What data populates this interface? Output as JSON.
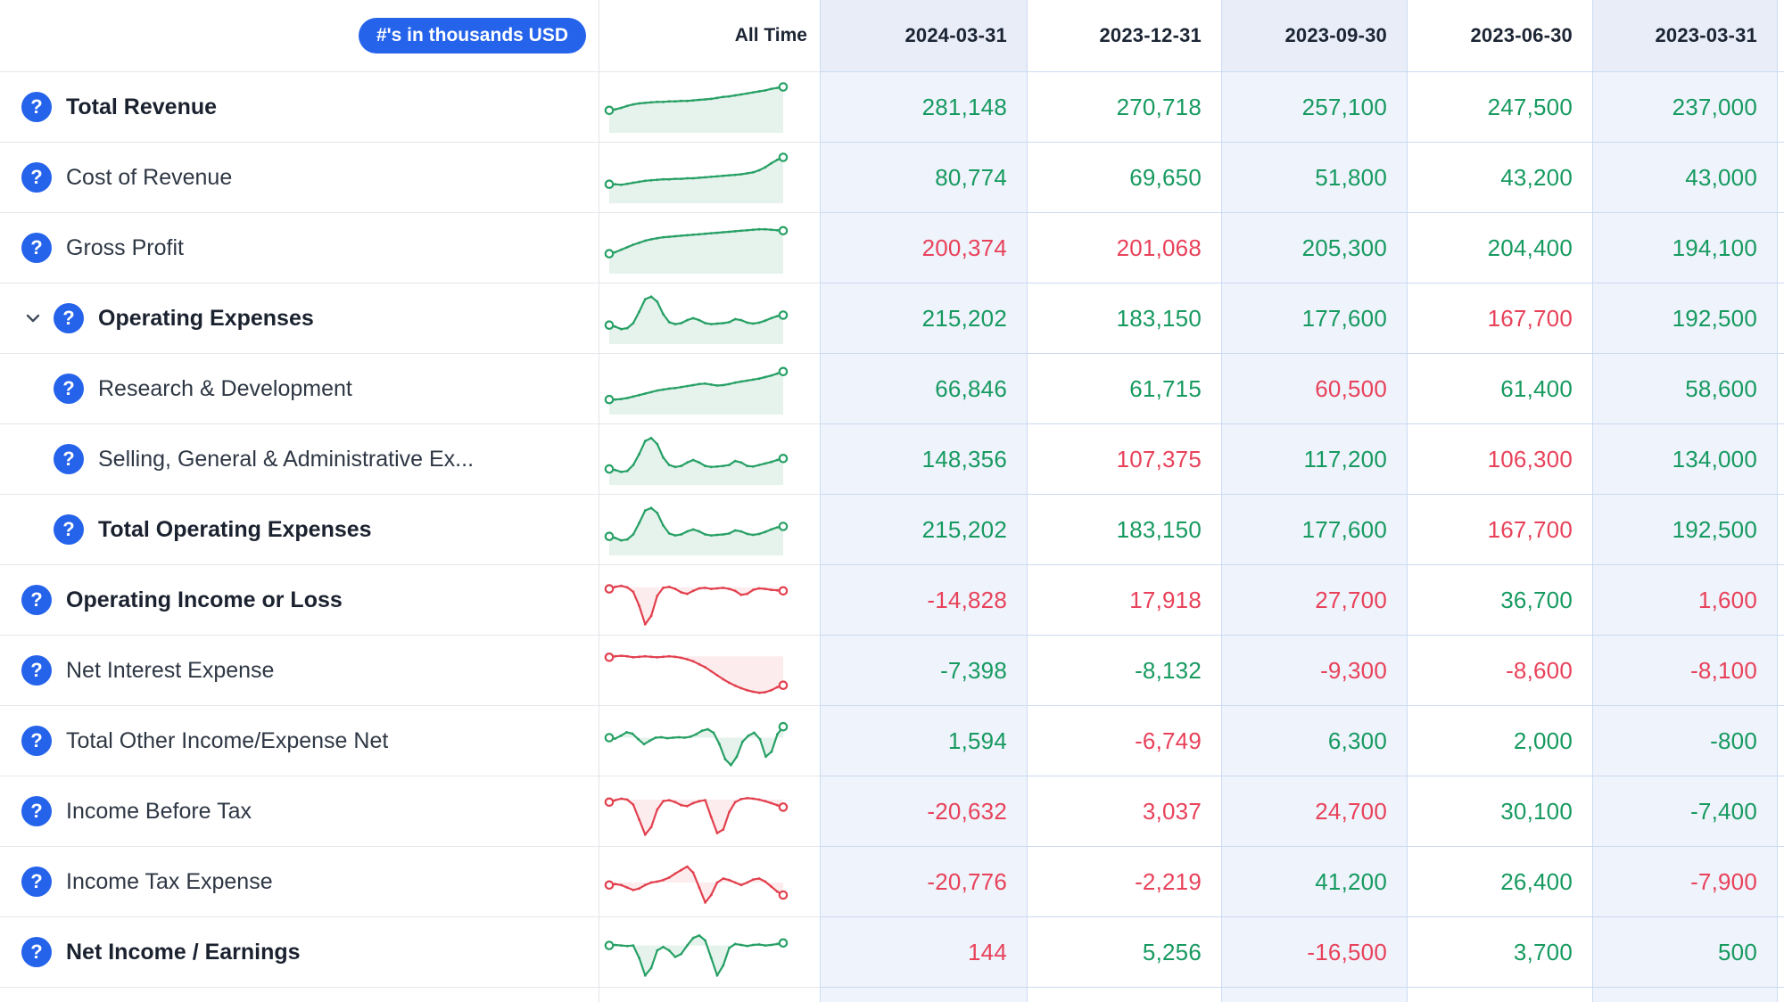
{
  "badge": "#'s in thousands USD",
  "header": {
    "all_time": "All Time",
    "dates": [
      "2024-03-31",
      "2023-12-31",
      "2023-09-30",
      "2023-06-30",
      "2023-03-31"
    ]
  },
  "colors": {
    "accent_blue": "#2563eb",
    "positive_green": "#179a60",
    "negative_red": "#e8425a",
    "spark_green": "#27a065",
    "spark_green_fill": "rgba(39,160,101,0.12)",
    "spark_red": "#e2404e",
    "spark_red_fill": "rgba(226,64,78,0.10)",
    "tint_header": "#e8edf8",
    "tint_body": "#eef3fc"
  },
  "rows": [
    {
      "label": "Total Revenue",
      "bold": true,
      "values": [
        "281,148",
        "270,718",
        "257,100",
        "247,500",
        "237,000"
      ],
      "value_colors": [
        "green",
        "green",
        "green",
        "green",
        "green"
      ],
      "spark": {
        "color": "green",
        "baseline": 1,
        "points": [
          0.55,
          0.53,
          0.5,
          0.46,
          0.43,
          0.41,
          0.4,
          0.39,
          0.38,
          0.38,
          0.37,
          0.37,
          0.36,
          0.36,
          0.35,
          0.34,
          0.33,
          0.32,
          0.3,
          0.28,
          0.27,
          0.25,
          0.23,
          0.21,
          0.19,
          0.17,
          0.15,
          0.12,
          0.1,
          0.08
        ]
      }
    },
    {
      "label": "Cost of Revenue",
      "bold": false,
      "values": [
        "80,774",
        "69,650",
        "51,800",
        "43,200",
        "43,000"
      ],
      "value_colors": [
        "green",
        "green",
        "green",
        "green",
        "green"
      ],
      "spark": {
        "color": "green",
        "baseline": 1,
        "points": [
          0.62,
          0.62,
          0.63,
          0.61,
          0.59,
          0.57,
          0.55,
          0.54,
          0.53,
          0.52,
          0.52,
          0.51,
          0.51,
          0.5,
          0.5,
          0.49,
          0.48,
          0.47,
          0.46,
          0.45,
          0.44,
          0.43,
          0.42,
          0.4,
          0.38,
          0.34,
          0.28,
          0.2,
          0.13,
          0.08
        ]
      }
    },
    {
      "label": "Gross Profit",
      "bold": false,
      "values": [
        "200,374",
        "201,068",
        "205,300",
        "204,400",
        "194,100"
      ],
      "value_colors": [
        "red",
        "red",
        "green",
        "green",
        "green"
      ],
      "spark": {
        "color": "green",
        "baseline": 1,
        "points": [
          0.6,
          0.57,
          0.52,
          0.47,
          0.42,
          0.38,
          0.34,
          0.31,
          0.29,
          0.27,
          0.26,
          0.25,
          0.24,
          0.23,
          0.22,
          0.21,
          0.2,
          0.19,
          0.18,
          0.17,
          0.16,
          0.15,
          0.14,
          0.13,
          0.12,
          0.11,
          0.11,
          0.12,
          0.13,
          0.14
        ]
      }
    },
    {
      "label": "Operating Expenses",
      "bold": true,
      "expandable": true,
      "values": [
        "215,202",
        "183,150",
        "177,600",
        "167,700",
        "192,500"
      ],
      "value_colors": [
        "green",
        "green",
        "green",
        "red",
        "green"
      ],
      "spark": {
        "color": "green",
        "baseline": 1,
        "points": [
          0.62,
          0.65,
          0.7,
          0.68,
          0.58,
          0.35,
          0.1,
          0.05,
          0.15,
          0.4,
          0.56,
          0.6,
          0.58,
          0.52,
          0.48,
          0.52,
          0.58,
          0.6,
          0.59,
          0.58,
          0.56,
          0.5,
          0.52,
          0.57,
          0.59,
          0.57,
          0.53,
          0.48,
          0.44,
          0.42
        ]
      }
    },
    {
      "label": "Research & Development",
      "bold": false,
      "values": [
        "66,846",
        "61,715",
        "60,500",
        "61,400",
        "58,600"
      ],
      "value_colors": [
        "green",
        "green",
        "red",
        "green",
        "green"
      ],
      "spark": {
        "color": "green",
        "baseline": 1,
        "points": [
          0.7,
          0.7,
          0.69,
          0.67,
          0.64,
          0.61,
          0.58,
          0.55,
          0.52,
          0.5,
          0.48,
          0.47,
          0.45,
          0.43,
          0.41,
          0.39,
          0.38,
          0.4,
          0.42,
          0.41,
          0.39,
          0.36,
          0.34,
          0.32,
          0.3,
          0.28,
          0.25,
          0.22,
          0.18,
          0.14
        ]
      }
    },
    {
      "label": "Selling, General & Administrative Ex...",
      "bold": false,
      "values": [
        "148,356",
        "107,375",
        "117,200",
        "106,300",
        "134,000"
      ],
      "value_colors": [
        "green",
        "red",
        "green",
        "red",
        "green"
      ],
      "spark": {
        "color": "green",
        "baseline": 1,
        "points": [
          0.68,
          0.7,
          0.74,
          0.72,
          0.6,
          0.38,
          0.12,
          0.06,
          0.18,
          0.45,
          0.6,
          0.64,
          0.62,
          0.55,
          0.5,
          0.55,
          0.62,
          0.64,
          0.63,
          0.62,
          0.6,
          0.52,
          0.55,
          0.62,
          0.63,
          0.6,
          0.57,
          0.54,
          0.5,
          0.47
        ]
      }
    },
    {
      "label": "Total Operating Expenses",
      "bold": true,
      "values": [
        "215,202",
        "183,150",
        "177,600",
        "167,700",
        "192,500"
      ],
      "value_colors": [
        "green",
        "green",
        "green",
        "red",
        "green"
      ],
      "spark": {
        "color": "green",
        "baseline": 1,
        "points": [
          0.62,
          0.65,
          0.7,
          0.68,
          0.58,
          0.35,
          0.1,
          0.05,
          0.15,
          0.4,
          0.56,
          0.6,
          0.58,
          0.52,
          0.48,
          0.52,
          0.58,
          0.6,
          0.59,
          0.58,
          0.56,
          0.5,
          0.52,
          0.57,
          0.59,
          0.57,
          0.53,
          0.48,
          0.44,
          0.42
        ]
      }
    },
    {
      "label": "Operating Income or Loss",
      "bold": true,
      "values": [
        "-14,828",
        "17,918",
        "27,700",
        "36,700",
        "1,600"
      ],
      "value_colors": [
        "red",
        "red",
        "red",
        "green",
        "red"
      ],
      "spark": {
        "color": "red",
        "baseline": 0.23,
        "points": [
          0.26,
          0.22,
          0.2,
          0.23,
          0.32,
          0.6,
          0.97,
          0.8,
          0.4,
          0.24,
          0.22,
          0.26,
          0.33,
          0.36,
          0.3,
          0.25,
          0.24,
          0.26,
          0.25,
          0.24,
          0.26,
          0.3,
          0.38,
          0.36,
          0.28,
          0.25,
          0.26,
          0.28,
          0.29,
          0.3
        ]
      }
    },
    {
      "label": "Net Interest Expense",
      "bold": false,
      "values": [
        "-7,398",
        "-8,132",
        "-9,300",
        "-8,600",
        "-8,100"
      ],
      "value_colors": [
        "green",
        "green",
        "red",
        "red",
        "red"
      ],
      "spark": {
        "color": "red",
        "baseline": 0.2,
        "points": [
          0.22,
          0.2,
          0.19,
          0.2,
          0.22,
          0.21,
          0.2,
          0.21,
          0.22,
          0.21,
          0.2,
          0.21,
          0.23,
          0.26,
          0.3,
          0.36,
          0.42,
          0.5,
          0.58,
          0.66,
          0.73,
          0.79,
          0.84,
          0.88,
          0.91,
          0.93,
          0.92,
          0.88,
          0.82,
          0.78
        ]
      }
    },
    {
      "label": "Total Other Income/Expense Net",
      "bold": false,
      "values": [
        "1,594",
        "-6,749",
        "6,300",
        "2,000",
        "-800"
      ],
      "value_colors": [
        "green",
        "red",
        "green",
        "green",
        "green"
      ],
      "spark": {
        "color": "green",
        "baseline": 0.42,
        "points": [
          0.42,
          0.44,
          0.38,
          0.31,
          0.34,
          0.45,
          0.55,
          0.48,
          0.42,
          0.41,
          0.43,
          0.42,
          0.41,
          0.42,
          0.4,
          0.35,
          0.28,
          0.25,
          0.32,
          0.55,
          0.85,
          0.97,
          0.8,
          0.5,
          0.38,
          0.32,
          0.45,
          0.8,
          0.7,
          0.35,
          0.2
        ]
      }
    },
    {
      "label": "Income Before Tax",
      "bold": false,
      "values": [
        "-20,632",
        "3,037",
        "24,700",
        "30,100",
        "-7,400"
      ],
      "value_colors": [
        "red",
        "red",
        "red",
        "green",
        "green"
      ],
      "spark": {
        "color": "red",
        "baseline": 0.25,
        "points": [
          0.3,
          0.26,
          0.23,
          0.25,
          0.35,
          0.65,
          0.95,
          0.8,
          0.45,
          0.28,
          0.26,
          0.3,
          0.36,
          0.38,
          0.32,
          0.28,
          0.26,
          0.6,
          0.92,
          0.85,
          0.5,
          0.3,
          0.24,
          0.22,
          0.23,
          0.25,
          0.28,
          0.32,
          0.36,
          0.4
        ]
      }
    },
    {
      "label": "Income Tax Expense",
      "bold": false,
      "values": [
        "-20,776",
        "-2,219",
        "41,200",
        "26,400",
        "-7,900"
      ],
      "value_colors": [
        "red",
        "red",
        "green",
        "green",
        "red"
      ],
      "spark": {
        "color": "red",
        "baseline": 0.5,
        "points": [
          0.55,
          0.53,
          0.55,
          0.6,
          0.65,
          0.62,
          0.55,
          0.5,
          0.48,
          0.45,
          0.4,
          0.32,
          0.25,
          0.18,
          0.3,
          0.6,
          0.9,
          0.75,
          0.5,
          0.42,
          0.45,
          0.5,
          0.55,
          0.5,
          0.44,
          0.42,
          0.48,
          0.58,
          0.68,
          0.75
        ]
      }
    },
    {
      "label": "Net Income / Earnings",
      "bold": true,
      "values": [
        "144",
        "5,256",
        "-16,500",
        "3,700",
        "500"
      ],
      "value_colors": [
        "red",
        "green",
        "red",
        "green",
        "green"
      ],
      "spark": {
        "color": "green",
        "baseline": 0.35,
        "points": [
          0.35,
          0.34,
          0.35,
          0.36,
          0.35,
          0.6,
          0.95,
          0.8,
          0.45,
          0.38,
          0.45,
          0.58,
          0.52,
          0.35,
          0.2,
          0.15,
          0.25,
          0.6,
          0.95,
          0.75,
          0.4,
          0.32,
          0.34,
          0.36,
          0.34,
          0.33,
          0.35,
          0.34,
          0.32,
          0.3
        ]
      }
    }
  ]
}
